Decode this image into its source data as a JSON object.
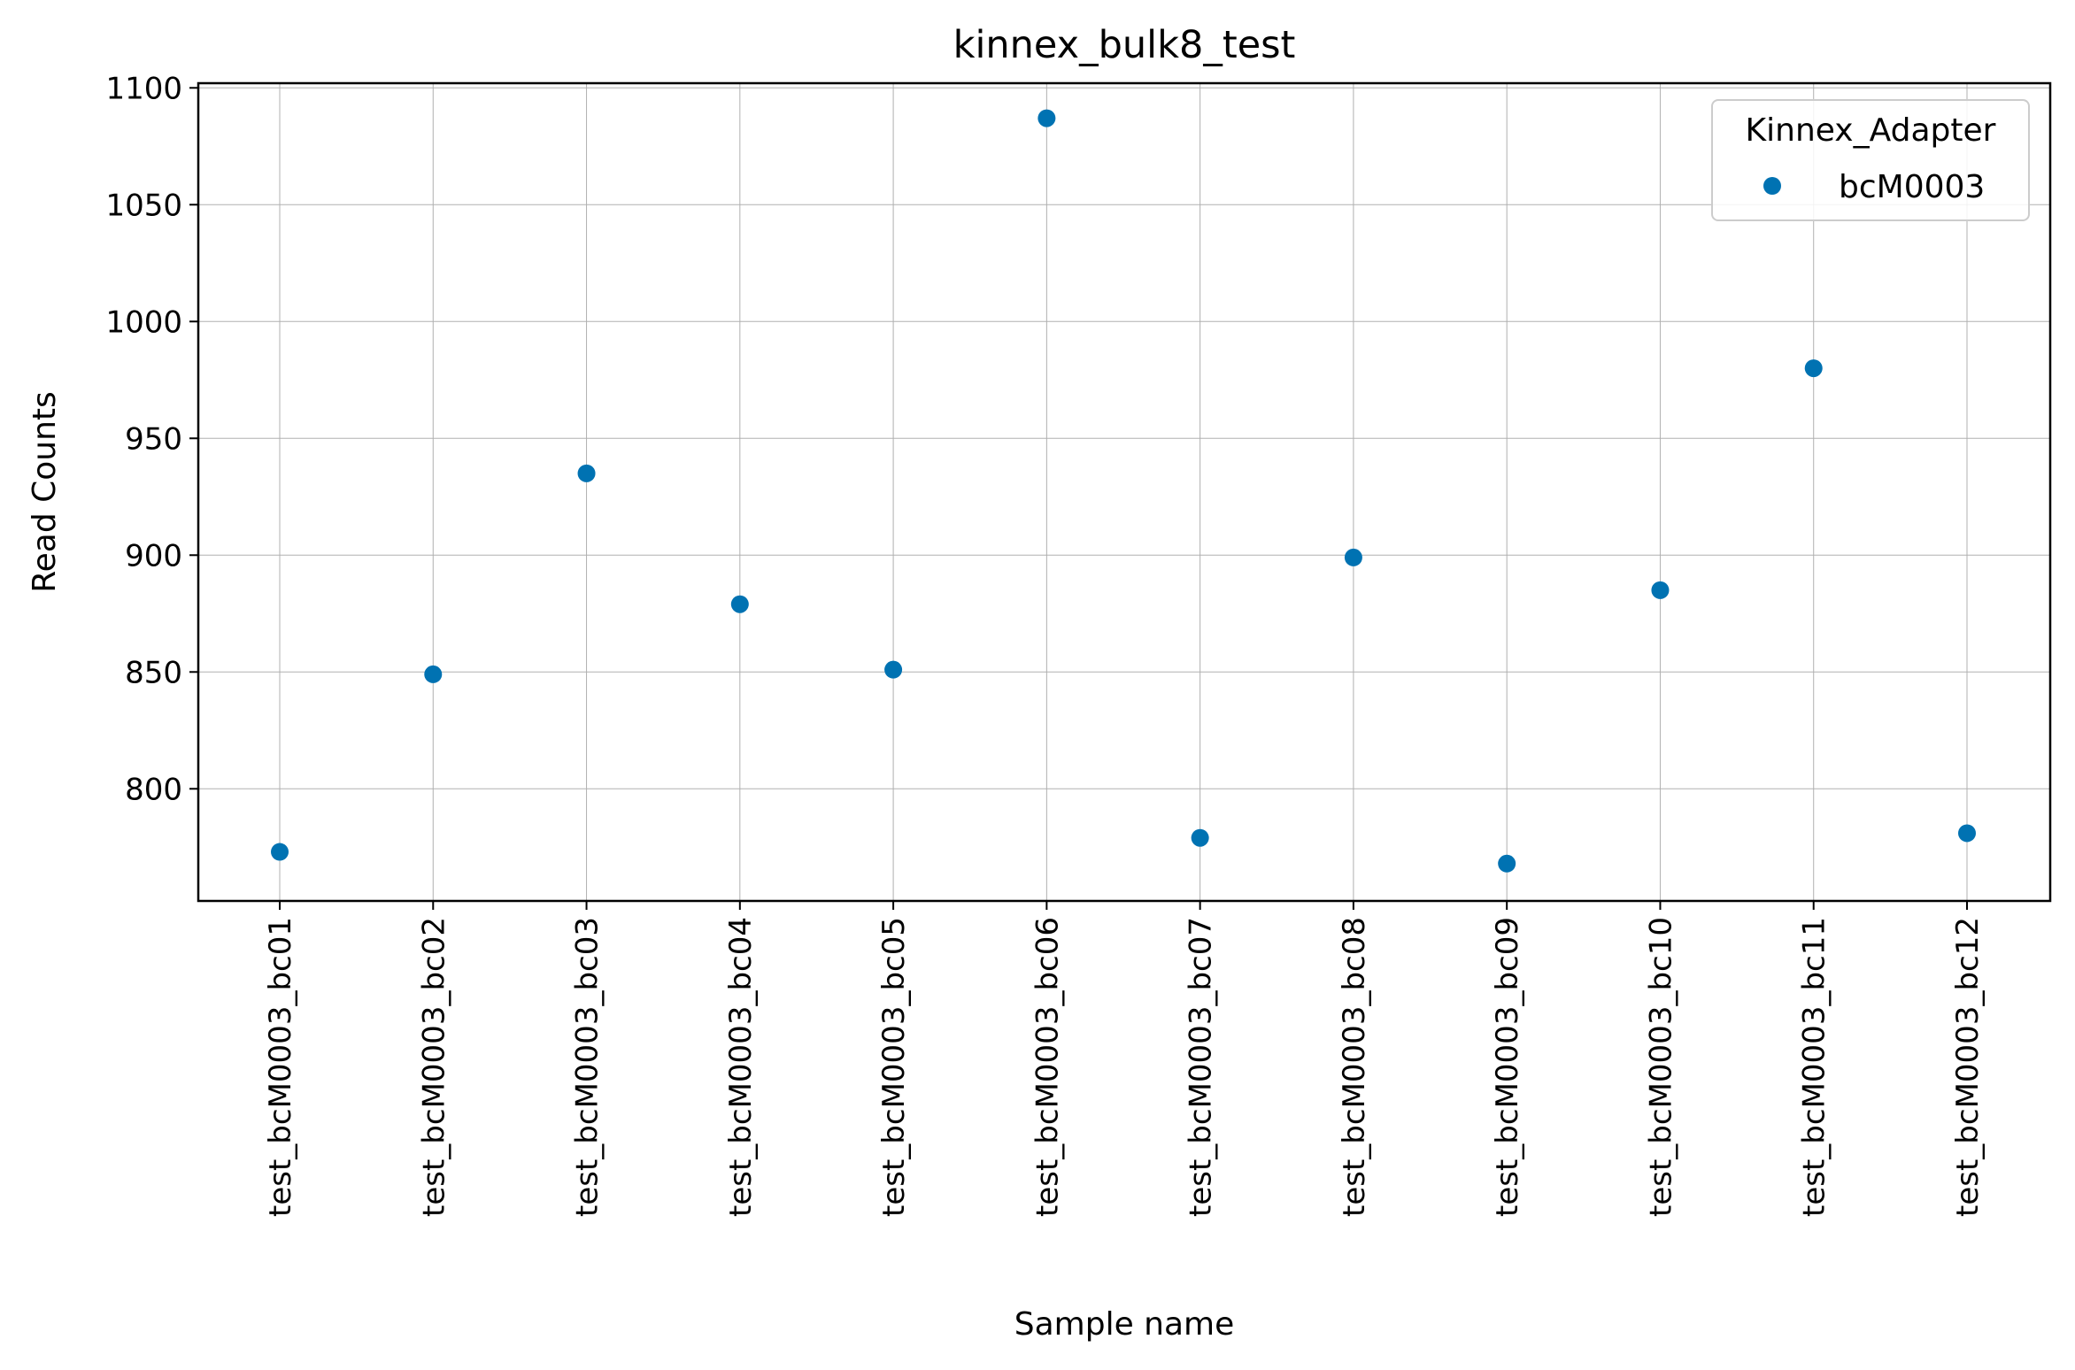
{
  "chart_data": {
    "type": "scatter",
    "title": "kinnex_bulk8_test",
    "xlabel": "Sample name",
    "ylabel": "Read Counts",
    "categories": [
      "test_bcM0003_bc01",
      "test_bcM0003_bc02",
      "test_bcM0003_bc03",
      "test_bcM0003_bc04",
      "test_bcM0003_bc05",
      "test_bcM0003_bc06",
      "test_bcM0003_bc07",
      "test_bcM0003_bc08",
      "test_bcM0003_bc09",
      "test_bcM0003_bc10",
      "test_bcM0003_bc11",
      "test_bcM0003_bc12"
    ],
    "series": [
      {
        "name": "bcM0003",
        "color": "#0072b2",
        "values": [
          773,
          849,
          935,
          879,
          851,
          1087,
          779,
          899,
          768,
          885,
          980,
          781
        ]
      }
    ],
    "ylim": [
      752,
      1102
    ],
    "yticks": [
      800,
      850,
      900,
      950,
      1000,
      1050,
      1100
    ],
    "grid": true,
    "legend": {
      "title": "Kinnex_Adapter",
      "placement": "top-right"
    }
  }
}
